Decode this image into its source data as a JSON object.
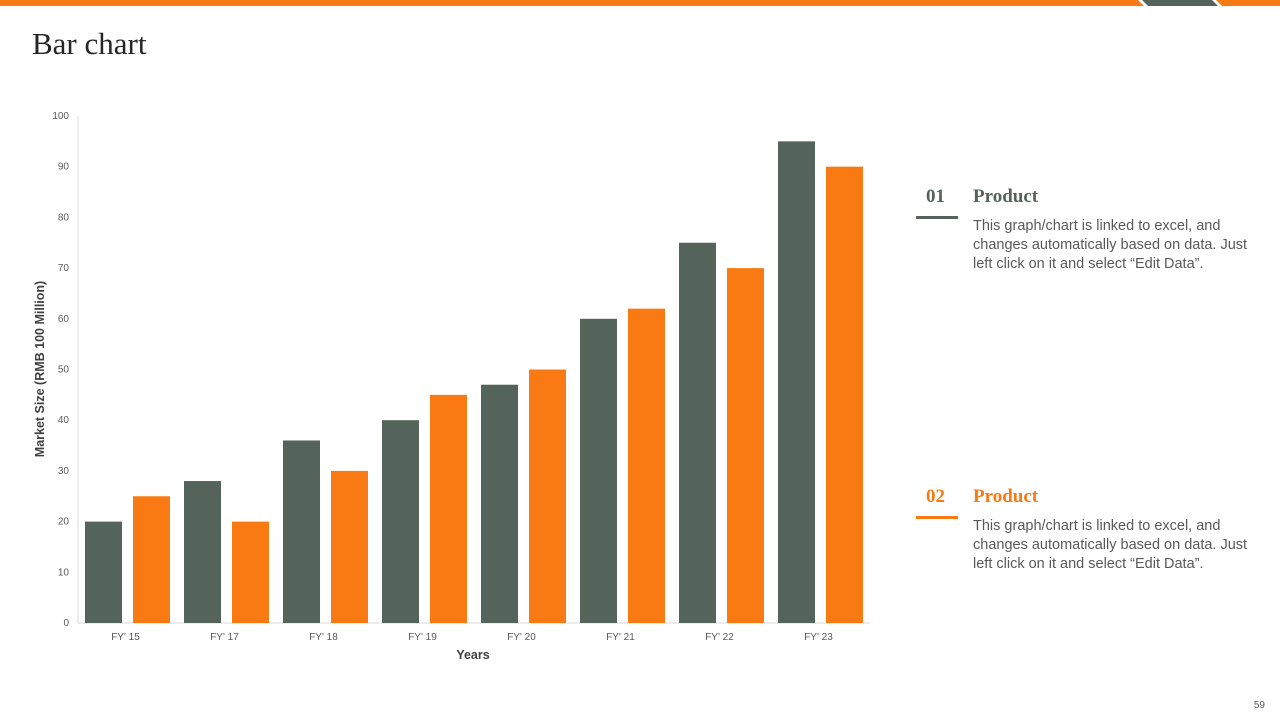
{
  "slide": {
    "title": "Bar chart",
    "page_number": "59"
  },
  "colors": {
    "accent": "#f97a12",
    "series_gray": "#55645a",
    "text": "#262626"
  },
  "legend": [
    {
      "number": "01",
      "name": "Product",
      "color": "#55645a",
      "description": "This graph/chart is linked to excel, and changes automatically based on data. Just left click on it and select “Edit Data”."
    },
    {
      "number": "02",
      "name": "Product",
      "color": "#f97a12",
      "description": "This graph/chart is linked to excel, and changes automatically based on data. Just left click on it and select “Edit Data”."
    }
  ],
  "chart_data": {
    "type": "bar",
    "title": "",
    "xlabel": "Years",
    "ylabel": "Market Size (RMB 100 Million)",
    "categories": [
      "FY' 15",
      "FY' 17",
      "FY' 18",
      "FY' 19",
      "FY' 20",
      "FY' 21",
      "FY' 22",
      "FY' 23"
    ],
    "yticks": [
      0,
      10,
      20,
      30,
      40,
      50,
      60,
      70,
      80,
      90,
      100
    ],
    "ylim": [
      0,
      100
    ],
    "grid": false,
    "series": [
      {
        "color": "#55645a",
        "values": [
          20,
          28,
          36,
          40,
          47,
          60,
          75,
          95
        ]
      },
      {
        "color": "#f97a12",
        "values": [
          25,
          20,
          30,
          45,
          50,
          62,
          70,
          90
        ]
      }
    ]
  }
}
